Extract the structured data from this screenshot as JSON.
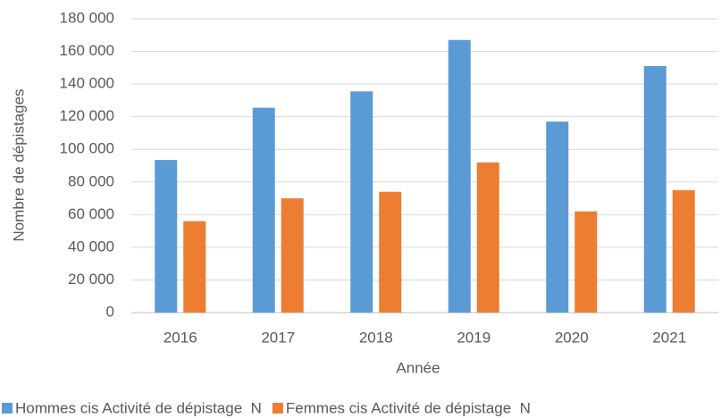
{
  "chart_data": {
    "type": "bar",
    "x_label": "Année",
    "y_label": "Nombre de dépistages",
    "categories": [
      "2016",
      "2017",
      "2018",
      "2019",
      "2020",
      "2021"
    ],
    "series": [
      {
        "name": "Hommes cis Activité de dépistage  N",
        "color": "#5b9bd5",
        "values": [
          93500,
          125500,
          135500,
          167000,
          117000,
          151000
        ]
      },
      {
        "name": "Femmes cis Activité de dépistage  N",
        "color": "#ed7d31",
        "values": [
          56000,
          70000,
          74000,
          92000,
          62000,
          75000
        ]
      }
    ],
    "ylim": [
      0,
      180000
    ],
    "yticks": [
      0,
      {
        "value": 20000,
        "label": "20 000"
      },
      {
        "value": 40000,
        "label": "40 000"
      },
      {
        "value": 60000,
        "label": "60 000"
      },
      {
        "value": 80000,
        "label": "80 000"
      },
      {
        "value": 100000,
        "label": "100 000"
      },
      {
        "value": 120000,
        "label": "120 000"
      },
      {
        "value": 140000,
        "label": "140 000"
      },
      {
        "value": 160000,
        "label": "160 000"
      },
      {
        "value": 180000,
        "label": "180 000"
      }
    ],
    "grid": true
  }
}
